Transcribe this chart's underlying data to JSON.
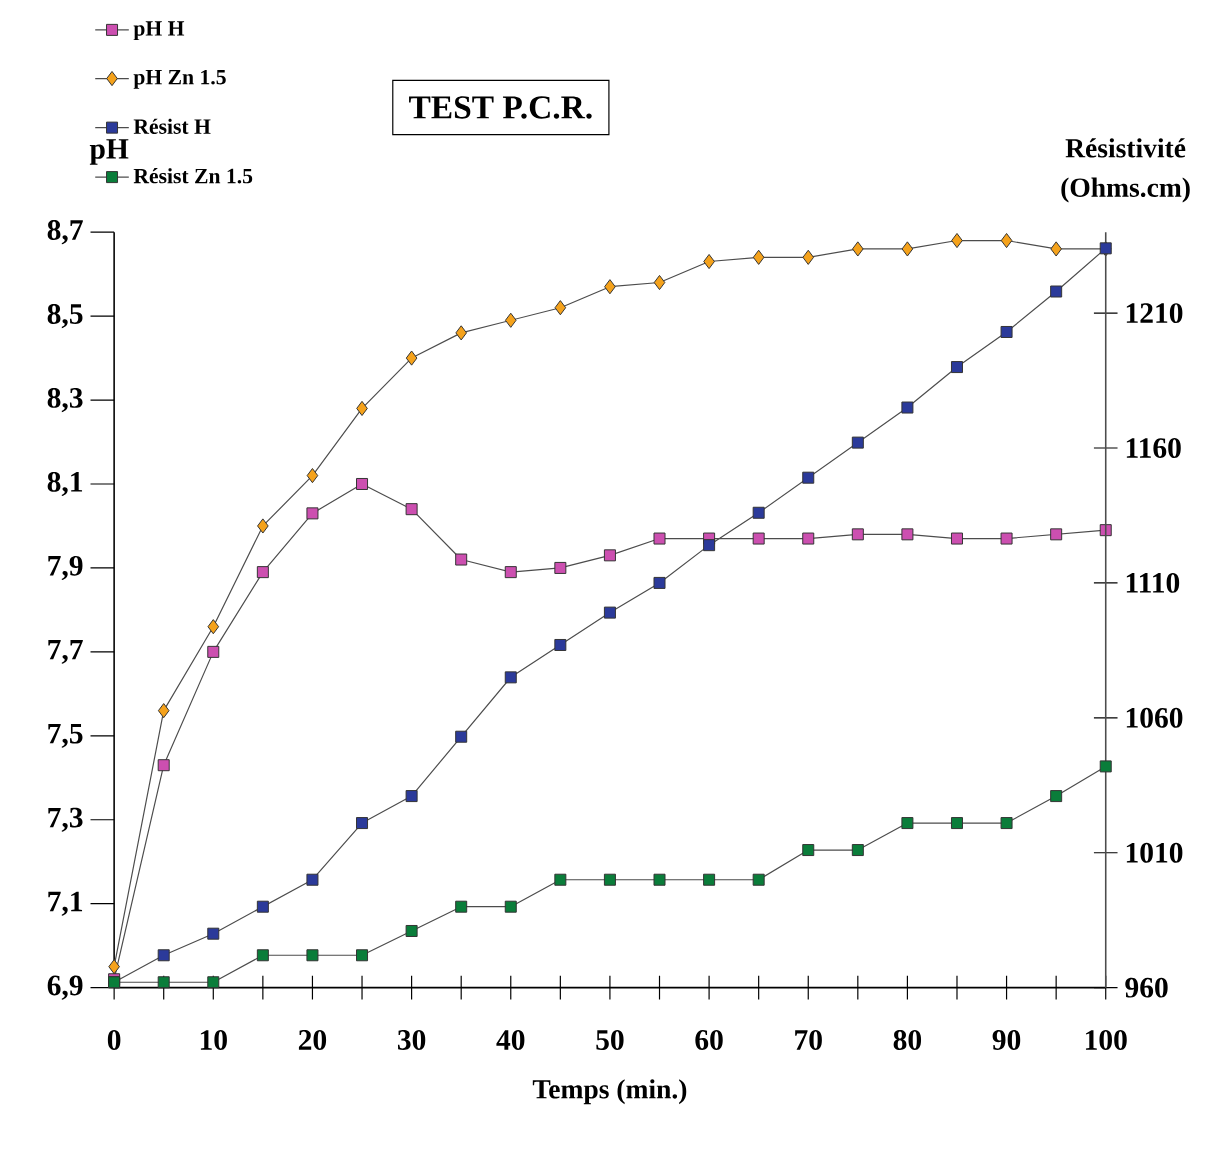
{
  "chart_data": {
    "type": "line",
    "title": "TEST P.C.R.",
    "xlabel": "Temps (min.)",
    "ylabel": "pH",
    "y2label": "Résistivité (Ohms.cm)",
    "x": [
      0,
      5,
      10,
      15,
      20,
      25,
      30,
      35,
      40,
      45,
      50,
      55,
      60,
      65,
      70,
      75,
      80,
      85,
      90,
      95,
      100
    ],
    "series": [
      {
        "name": "pH H",
        "color": "#cc4fb0",
        "marker": "square",
        "values": [
          6.92,
          7.43,
          7.7,
          7.89,
          8.03,
          8.1,
          8.04,
          7.92,
          7.89,
          7.9,
          7.93,
          7.97,
          7.97,
          7.97,
          7.97,
          7.98,
          7.98,
          7.97,
          7.97,
          7.98,
          7.99
        ]
      },
      {
        "name": "pH Zn 1.5",
        "color": "#f5a21b",
        "marker": "diamond",
        "values": [
          6.95,
          7.56,
          7.76,
          8.0,
          8.12,
          8.28,
          8.4,
          8.46,
          8.49,
          8.52,
          8.57,
          8.58,
          8.63,
          8.64,
          8.64,
          8.66,
          8.66,
          8.68,
          8.68,
          8.66,
          8.66
        ]
      },
      {
        "name": "Résist H",
        "color": "#2b3a9a",
        "marker": "square",
        "axis": "y2",
        "values": [
          962,
          972,
          980,
          990,
          1000,
          1021,
          1031,
          1053,
          1075,
          1087,
          1099,
          1110,
          1124,
          1136,
          1149,
          1162,
          1175,
          1190,
          1203,
          1218,
          1234
        ]
      },
      {
        "name": "Résist Zn 1.5",
        "color": "#0a7d3a",
        "marker": "square",
        "axis": "y2",
        "values": [
          962,
          962,
          962,
          972,
          972,
          972,
          981,
          990,
          990,
          1000,
          1000,
          1000,
          1000,
          1000,
          1011,
          1011,
          1021,
          1021,
          1021,
          1031,
          1042
        ]
      }
    ],
    "xlim": [
      0,
      100
    ],
    "xticks": [
      0,
      {
        "value": 5,
        "label": null
      },
      10,
      {
        "value": 15,
        "label": null
      },
      20,
      {
        "value": 25,
        "label": null
      },
      30,
      {
        "value": 35,
        "label": null
      },
      40,
      {
        "value": 45,
        "label": null
      },
      50,
      {
        "value": 55,
        "label": null
      },
      60,
      {
        "value": 65,
        "label": null
      },
      70,
      {
        "value": 75,
        "label": null
      },
      80,
      {
        "value": 85,
        "label": null
      },
      90,
      {
        "value": 95,
        "label": null
      },
      100
    ],
    "ylim": [
      6.9,
      8.7
    ],
    "yticks": [
      {
        "value": 6.9,
        "label": "6,9"
      },
      {
        "value": 7.1,
        "label": "7,1"
      },
      {
        "value": 7.3,
        "label": "7,3"
      },
      {
        "value": 7.5,
        "label": "7,5"
      },
      {
        "value": 7.7,
        "label": "7,7"
      },
      {
        "value": 7.9,
        "label": "7,9"
      },
      {
        "value": 8.1,
        "label": "8,1"
      },
      {
        "value": 8.3,
        "label": "8,3"
      },
      {
        "value": 8.5,
        "label": "8,5"
      },
      {
        "value": 8.7,
        "label": "8,7"
      }
    ],
    "y2lim": [
      960,
      1240
    ],
    "y2ticks": [
      960,
      1010,
      1060,
      1110,
      1160,
      1210
    ],
    "grid": false,
    "legend": "top left"
  }
}
